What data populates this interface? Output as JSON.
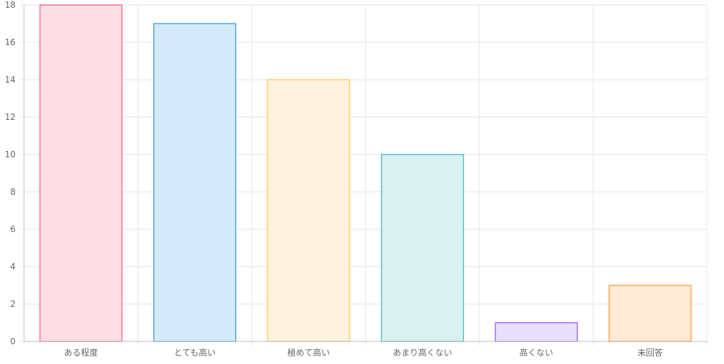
{
  "chart_data": {
    "type": "bar",
    "title": "",
    "xlabel": "",
    "ylabel": "",
    "categories": [
      "ある程度",
      "とても高い",
      "極めて高い",
      "あまり高くない",
      "高くない",
      "未回答"
    ],
    "values": [
      18,
      17,
      14,
      10,
      1,
      3
    ],
    "ylim": [
      0,
      18
    ],
    "yticks": [
      0,
      2,
      4,
      6,
      8,
      10,
      12,
      14,
      16,
      18
    ],
    "grid": true,
    "legend": "none",
    "bar_fill_colors": [
      "#ffdde4",
      "#d5eaf9",
      "#fff3df",
      "#daf1f1",
      "#e9dfff",
      "#ffead6"
    ],
    "bar_border_colors": [
      "#ff6e8f",
      "#4ba6e8",
      "#ffce5c",
      "#4fc0c0",
      "#9b6cff",
      "#ffa64d"
    ],
    "grid_color": "#e4e4e4",
    "axis_color": "#bdbdbd",
    "label_color": "#666666"
  }
}
